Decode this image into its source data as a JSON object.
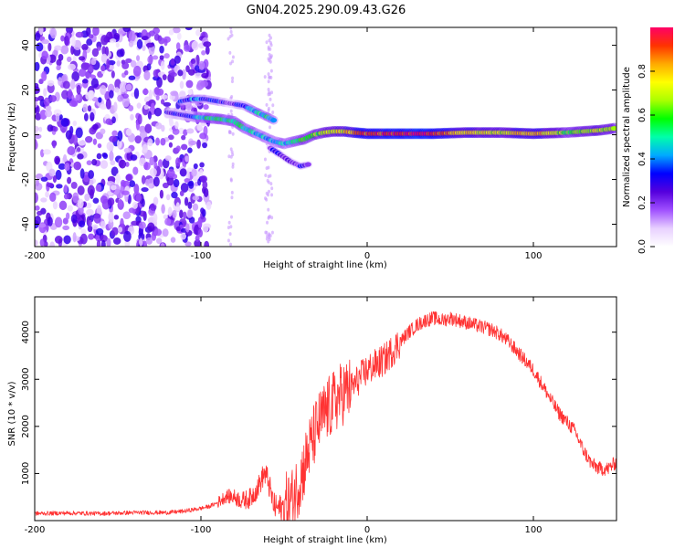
{
  "title": "GN04.2025.290.09.43.G26",
  "chart_data": [
    {
      "type": "heatmap",
      "xlabel": "Height of straight line (km)",
      "ylabel": "Frequency (Hz)",
      "xlim": [
        -200,
        150
      ],
      "ylim": [
        -50,
        48
      ],
      "xticks": [
        -200,
        -100,
        0,
        100
      ],
      "yticks": [
        -40,
        -20,
        0,
        20,
        40
      ],
      "colorbar": {
        "label": "Normalized spectral amplitude",
        "range": [
          0,
          1
        ],
        "ticks": [
          "0.0",
          "0.2",
          "0.4",
          "0.6",
          "0.8"
        ],
        "colors": [
          "#ffffff",
          "#e8d0ff",
          "#a050ff",
          "#5500dd",
          "#0000ff",
          "#00aaff",
          "#00ffaa",
          "#00ff00",
          "#aaff00",
          "#ffff00",
          "#ffaa00",
          "#ff3300",
          "#ff0066"
        ]
      },
      "ridge": {
        "x": [
          -120,
          -112,
          -104,
          -96,
          -88,
          -80,
          -74,
          -68,
          -62,
          -56,
          -50,
          -44,
          -38,
          -32,
          -26,
          -20,
          -14,
          -8,
          0,
          20,
          40,
          60,
          80,
          100,
          120,
          140,
          150
        ],
        "y": [
          10,
          9,
          8,
          7.5,
          7,
          6,
          3,
          1,
          -1,
          -3,
          -4,
          -3,
          -2,
          0,
          1,
          1.5,
          1.5,
          1,
          0.5,
          0.5,
          0.5,
          1,
          1,
          0.5,
          1,
          2,
          3
        ],
        "amplitude": [
          0.3,
          0.3,
          0.4,
          0.5,
          0.55,
          0.5,
          0.5,
          0.45,
          0.45,
          0.4,
          0.45,
          0.5,
          0.55,
          0.6,
          0.65,
          0.7,
          0.75,
          0.8,
          0.9,
          0.95,
          0.95,
          0.75,
          0.7,
          0.85,
          0.6,
          0.7,
          0.65
        ]
      },
      "upper_branch": {
        "x": [
          -112,
          -105,
          -98,
          -90,
          -82,
          -74,
          -66,
          -60,
          -55
        ],
        "y": [
          15,
          16,
          16,
          15,
          14,
          13,
          10,
          8,
          6
        ],
        "amplitude": [
          0.3,
          0.4,
          0.35,
          0.3,
          0.25,
          0.3,
          0.45,
          0.5,
          0.4
        ]
      },
      "lower_branch": {
        "x": [
          -58,
          -52,
          -46,
          -40,
          -34
        ],
        "y": [
          -6,
          -9,
          -12,
          -14,
          -13
        ],
        "amplitude": [
          0.25,
          0.3,
          0.25,
          0.25,
          0.2
        ]
      },
      "noise_region": {
        "x_start": -200,
        "x_end": -100,
        "amplitude_range": [
          0.05,
          0.3
        ]
      }
    },
    {
      "type": "line",
      "xlabel": "Height of straight line (km)",
      "ylabel": "SNR (10 * v/v)",
      "xlim": [
        -200,
        150
      ],
      "ylim": [
        0,
        4750
      ],
      "xticks": [
        -200,
        -100,
        0,
        100
      ],
      "yticks": [
        1000,
        2000,
        3000,
        4000
      ],
      "series": [
        {
          "name": "SNR",
          "color": "#ff3333",
          "x": [
            -200,
            -180,
            -160,
            -140,
            -120,
            -110,
            -100,
            -95,
            -90,
            -85,
            -80,
            -75,
            -70,
            -65,
            -62,
            -60,
            -56,
            -52,
            -50,
            -45,
            -40,
            -35,
            -30,
            -25,
            -20,
            -15,
            -10,
            -5,
            0,
            5,
            10,
            15,
            20,
            25,
            30,
            35,
            40,
            45,
            50,
            55,
            60,
            65,
            70,
            75,
            80,
            85,
            90,
            95,
            100,
            105,
            110,
            115,
            120,
            125,
            130,
            135,
            140,
            145,
            150
          ],
          "y": [
            150,
            160,
            150,
            170,
            170,
            200,
            260,
            300,
            380,
            520,
            500,
            420,
            480,
            750,
            1000,
            900,
            300,
            250,
            300,
            450,
            900,
            1500,
            2000,
            2300,
            2500,
            2700,
            2800,
            3000,
            3200,
            3300,
            3400,
            3600,
            3800,
            4000,
            4150,
            4250,
            4300,
            4250,
            4300,
            4250,
            4200,
            4150,
            4100,
            4050,
            3950,
            3800,
            3600,
            3400,
            3200,
            2900,
            2600,
            2300,
            2100,
            1900,
            1500,
            1200,
            1100,
            1100,
            1250
          ]
        }
      ]
    }
  ]
}
